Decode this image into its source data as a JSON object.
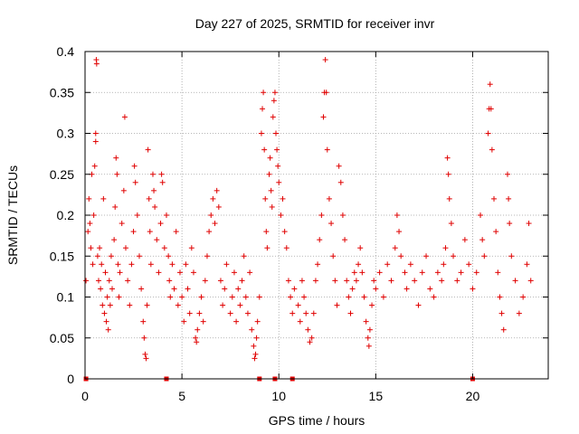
{
  "chart_data": {
    "type": "scatter",
    "title": "Day 227 of 2025, SRMTID for receiver invr",
    "xlabel": "GPS time / hours",
    "ylabel": "SRMTID / TECUs",
    "xlim": [
      0,
      23.9
    ],
    "ylim": [
      0,
      0.4
    ],
    "xticks": [
      0,
      5,
      10,
      15,
      20
    ],
    "yticks": [
      0,
      0.05,
      0.1,
      0.15,
      0.2,
      0.25,
      0.3,
      0.35,
      0.4
    ],
    "xtick_labels": [
      "0",
      "5",
      "10",
      "15",
      "20"
    ],
    "ytick_labels": [
      "0",
      "0.05",
      "0.1",
      "0.15",
      "0.2",
      "0.25",
      "0.3",
      "0.35",
      "0.4"
    ],
    "grid": true,
    "marker": "plus",
    "color": "#e00000",
    "series": [
      {
        "name": "SRMTID",
        "points": [
          [
            0.05,
            0.12
          ],
          [
            0.15,
            0.18
          ],
          [
            0.2,
            0.22
          ],
          [
            0.25,
            0.19
          ],
          [
            0.3,
            0.16
          ],
          [
            0.35,
            0.25
          ],
          [
            0.4,
            0.14
          ],
          [
            0.45,
            0.2
          ],
          [
            0.5,
            0.26
          ],
          [
            0.55,
            0.29
          ],
          [
            0.55,
            0.3
          ],
          [
            0.58,
            0.39
          ],
          [
            0.6,
            0.385
          ],
          [
            0.65,
            0.15
          ],
          [
            0.7,
            0.12
          ],
          [
            0.75,
            0.16
          ],
          [
            0.8,
            0.11
          ],
          [
            0.85,
            0.14
          ],
          [
            0.9,
            0.09
          ],
          [
            0.95,
            0.22
          ],
          [
            1.0,
            0.08
          ],
          [
            1.05,
            0.13
          ],
          [
            1.1,
            0.07
          ],
          [
            1.15,
            0.1
          ],
          [
            1.2,
            0.06
          ],
          [
            1.25,
            0.12
          ],
          [
            1.3,
            0.09
          ],
          [
            1.35,
            0.15
          ],
          [
            1.4,
            0.11
          ],
          [
            1.5,
            0.17
          ],
          [
            1.55,
            0.21
          ],
          [
            1.6,
            0.27
          ],
          [
            1.65,
            0.25
          ],
          [
            1.7,
            0.14
          ],
          [
            1.75,
            0.1
          ],
          [
            1.8,
            0.13
          ],
          [
            1.9,
            0.19
          ],
          [
            2.0,
            0.23
          ],
          [
            2.05,
            0.32
          ],
          [
            2.1,
            0.16
          ],
          [
            2.2,
            0.12
          ],
          [
            2.3,
            0.09
          ],
          [
            2.4,
            0.14
          ],
          [
            2.5,
            0.18
          ],
          [
            2.55,
            0.26
          ],
          [
            2.6,
            0.24
          ],
          [
            2.7,
            0.2
          ],
          [
            2.8,
            0.15
          ],
          [
            2.9,
            0.11
          ],
          [
            3.0,
            0.07
          ],
          [
            3.05,
            0.05
          ],
          [
            3.1,
            0.03
          ],
          [
            3.15,
            0.025
          ],
          [
            3.2,
            0.09
          ],
          [
            3.25,
            0.28
          ],
          [
            3.3,
            0.22
          ],
          [
            3.35,
            0.18
          ],
          [
            3.4,
            0.14
          ],
          [
            3.5,
            0.25
          ],
          [
            3.55,
            0.23
          ],
          [
            3.6,
            0.21
          ],
          [
            3.7,
            0.17
          ],
          [
            3.8,
            0.13
          ],
          [
            3.9,
            0.19
          ],
          [
            3.95,
            0.25
          ],
          [
            4.0,
            0.24
          ],
          [
            4.1,
            0.16
          ],
          [
            4.2,
            0.2
          ],
          [
            4.3,
            0.15
          ],
          [
            4.35,
            0.12
          ],
          [
            4.4,
            0.1
          ],
          [
            4.5,
            0.14
          ],
          [
            4.6,
            0.11
          ],
          [
            4.7,
            0.18
          ],
          [
            4.8,
            0.09
          ],
          [
            4.9,
            0.13
          ],
          [
            5.0,
            0.1
          ],
          [
            5.1,
            0.07
          ],
          [
            5.2,
            0.14
          ],
          [
            5.3,
            0.11
          ],
          [
            5.4,
            0.08
          ],
          [
            5.5,
            0.16
          ],
          [
            5.6,
            0.13
          ],
          [
            5.7,
            0.05
          ],
          [
            5.75,
            0.045
          ],
          [
            5.8,
            0.06
          ],
          [
            5.9,
            0.08
          ],
          [
            6.0,
            0.1
          ],
          [
            6.1,
            0.07
          ],
          [
            6.2,
            0.12
          ],
          [
            6.3,
            0.15
          ],
          [
            6.4,
            0.18
          ],
          [
            6.5,
            0.2
          ],
          [
            6.6,
            0.22
          ],
          [
            6.7,
            0.19
          ],
          [
            6.8,
            0.23
          ],
          [
            6.9,
            0.21
          ],
          [
            7.0,
            0.12
          ],
          [
            7.1,
            0.09
          ],
          [
            7.2,
            0.11
          ],
          [
            7.3,
            0.14
          ],
          [
            7.5,
            0.08
          ],
          [
            7.6,
            0.1
          ],
          [
            7.7,
            0.13
          ],
          [
            7.8,
            0.07
          ],
          [
            7.9,
            0.11
          ],
          [
            8.0,
            0.09
          ],
          [
            8.1,
            0.12
          ],
          [
            8.2,
            0.15
          ],
          [
            8.3,
            0.1
          ],
          [
            8.4,
            0.08
          ],
          [
            8.5,
            0.13
          ],
          [
            8.6,
            0.06
          ],
          [
            8.7,
            0.04
          ],
          [
            8.75,
            0.025
          ],
          [
            8.8,
            0.03
          ],
          [
            8.85,
            0.05
          ],
          [
            8.9,
            0.07
          ],
          [
            9.0,
            0.1
          ],
          [
            9.1,
            0.3
          ],
          [
            9.15,
            0.33
          ],
          [
            9.2,
            0.35
          ],
          [
            9.25,
            0.28
          ],
          [
            9.3,
            0.22
          ],
          [
            9.35,
            0.18
          ],
          [
            9.4,
            0.16
          ],
          [
            9.5,
            0.25
          ],
          [
            9.55,
            0.27
          ],
          [
            9.6,
            0.23
          ],
          [
            9.65,
            0.21
          ],
          [
            9.7,
            0.32
          ],
          [
            9.75,
            0.34
          ],
          [
            9.8,
            0.35
          ],
          [
            9.85,
            0.3
          ],
          [
            9.9,
            0.28
          ],
          [
            9.95,
            0.26
          ],
          [
            10.0,
            0.24
          ],
          [
            10.1,
            0.2
          ],
          [
            10.2,
            0.22
          ],
          [
            10.3,
            0.18
          ],
          [
            10.4,
            0.16
          ],
          [
            10.5,
            0.12
          ],
          [
            10.6,
            0.1
          ],
          [
            10.7,
            0.08
          ],
          [
            10.8,
            0.11
          ],
          [
            11.0,
            0.09
          ],
          [
            11.1,
            0.07
          ],
          [
            11.2,
            0.12
          ],
          [
            11.3,
            0.1
          ],
          [
            11.4,
            0.08
          ],
          [
            11.5,
            0.06
          ],
          [
            11.6,
            0.045
          ],
          [
            11.7,
            0.05
          ],
          [
            11.8,
            0.08
          ],
          [
            11.9,
            0.12
          ],
          [
            12.0,
            0.14
          ],
          [
            12.1,
            0.17
          ],
          [
            12.2,
            0.2
          ],
          [
            12.3,
            0.32
          ],
          [
            12.35,
            0.35
          ],
          [
            12.4,
            0.39
          ],
          [
            12.45,
            0.35
          ],
          [
            12.5,
            0.28
          ],
          [
            12.6,
            0.22
          ],
          [
            12.7,
            0.19
          ],
          [
            12.8,
            0.15
          ],
          [
            12.9,
            0.12
          ],
          [
            13.0,
            0.09
          ],
          [
            13.1,
            0.26
          ],
          [
            13.2,
            0.24
          ],
          [
            13.3,
            0.2
          ],
          [
            13.4,
            0.17
          ],
          [
            13.5,
            0.12
          ],
          [
            13.6,
            0.1
          ],
          [
            13.7,
            0.08
          ],
          [
            13.8,
            0.11
          ],
          [
            13.9,
            0.13
          ],
          [
            14.0,
            0.12
          ],
          [
            14.1,
            0.14
          ],
          [
            14.2,
            0.16
          ],
          [
            14.3,
            0.13
          ],
          [
            14.4,
            0.1
          ],
          [
            14.5,
            0.07
          ],
          [
            14.6,
            0.05
          ],
          [
            14.65,
            0.04
          ],
          [
            14.7,
            0.06
          ],
          [
            14.8,
            0.09
          ],
          [
            14.9,
            0.12
          ],
          [
            15.0,
            0.11
          ],
          [
            15.2,
            0.13
          ],
          [
            15.4,
            0.1
          ],
          [
            15.6,
            0.14
          ],
          [
            15.8,
            0.12
          ],
          [
            16.0,
            0.16
          ],
          [
            16.1,
            0.2
          ],
          [
            16.2,
            0.18
          ],
          [
            16.3,
            0.15
          ],
          [
            16.5,
            0.13
          ],
          [
            16.6,
            0.11
          ],
          [
            16.8,
            0.14
          ],
          [
            17.0,
            0.12
          ],
          [
            17.2,
            0.09
          ],
          [
            17.4,
            0.13
          ],
          [
            17.6,
            0.15
          ],
          [
            17.8,
            0.11
          ],
          [
            18.0,
            0.1
          ],
          [
            18.2,
            0.13
          ],
          [
            18.4,
            0.12
          ],
          [
            18.5,
            0.14
          ],
          [
            18.6,
            0.16
          ],
          [
            18.7,
            0.27
          ],
          [
            18.75,
            0.25
          ],
          [
            18.8,
            0.22
          ],
          [
            18.9,
            0.19
          ],
          [
            19.0,
            0.15
          ],
          [
            19.2,
            0.12
          ],
          [
            19.4,
            0.13
          ],
          [
            19.6,
            0.17
          ],
          [
            19.8,
            0.14
          ],
          [
            20.0,
            0.11
          ],
          [
            20.2,
            0.13
          ],
          [
            20.4,
            0.2
          ],
          [
            20.5,
            0.17
          ],
          [
            20.6,
            0.15
          ],
          [
            20.8,
            0.3
          ],
          [
            20.85,
            0.33
          ],
          [
            20.9,
            0.36
          ],
          [
            20.95,
            0.33
          ],
          [
            21.0,
            0.28
          ],
          [
            21.1,
            0.22
          ],
          [
            21.2,
            0.18
          ],
          [
            21.3,
            0.13
          ],
          [
            21.4,
            0.1
          ],
          [
            21.5,
            0.08
          ],
          [
            21.6,
            0.06
          ],
          [
            21.8,
            0.25
          ],
          [
            21.85,
            0.22
          ],
          [
            21.9,
            0.19
          ],
          [
            22.0,
            0.15
          ],
          [
            22.2,
            0.12
          ],
          [
            22.4,
            0.08
          ],
          [
            22.6,
            0.1
          ],
          [
            22.8,
            0.14
          ],
          [
            22.9,
            0.19
          ],
          [
            23.0,
            0.12
          ]
        ]
      }
    ],
    "zero_markers": [
      0.05,
      4.2,
      9.0,
      9.8,
      10.7,
      20.0
    ]
  }
}
